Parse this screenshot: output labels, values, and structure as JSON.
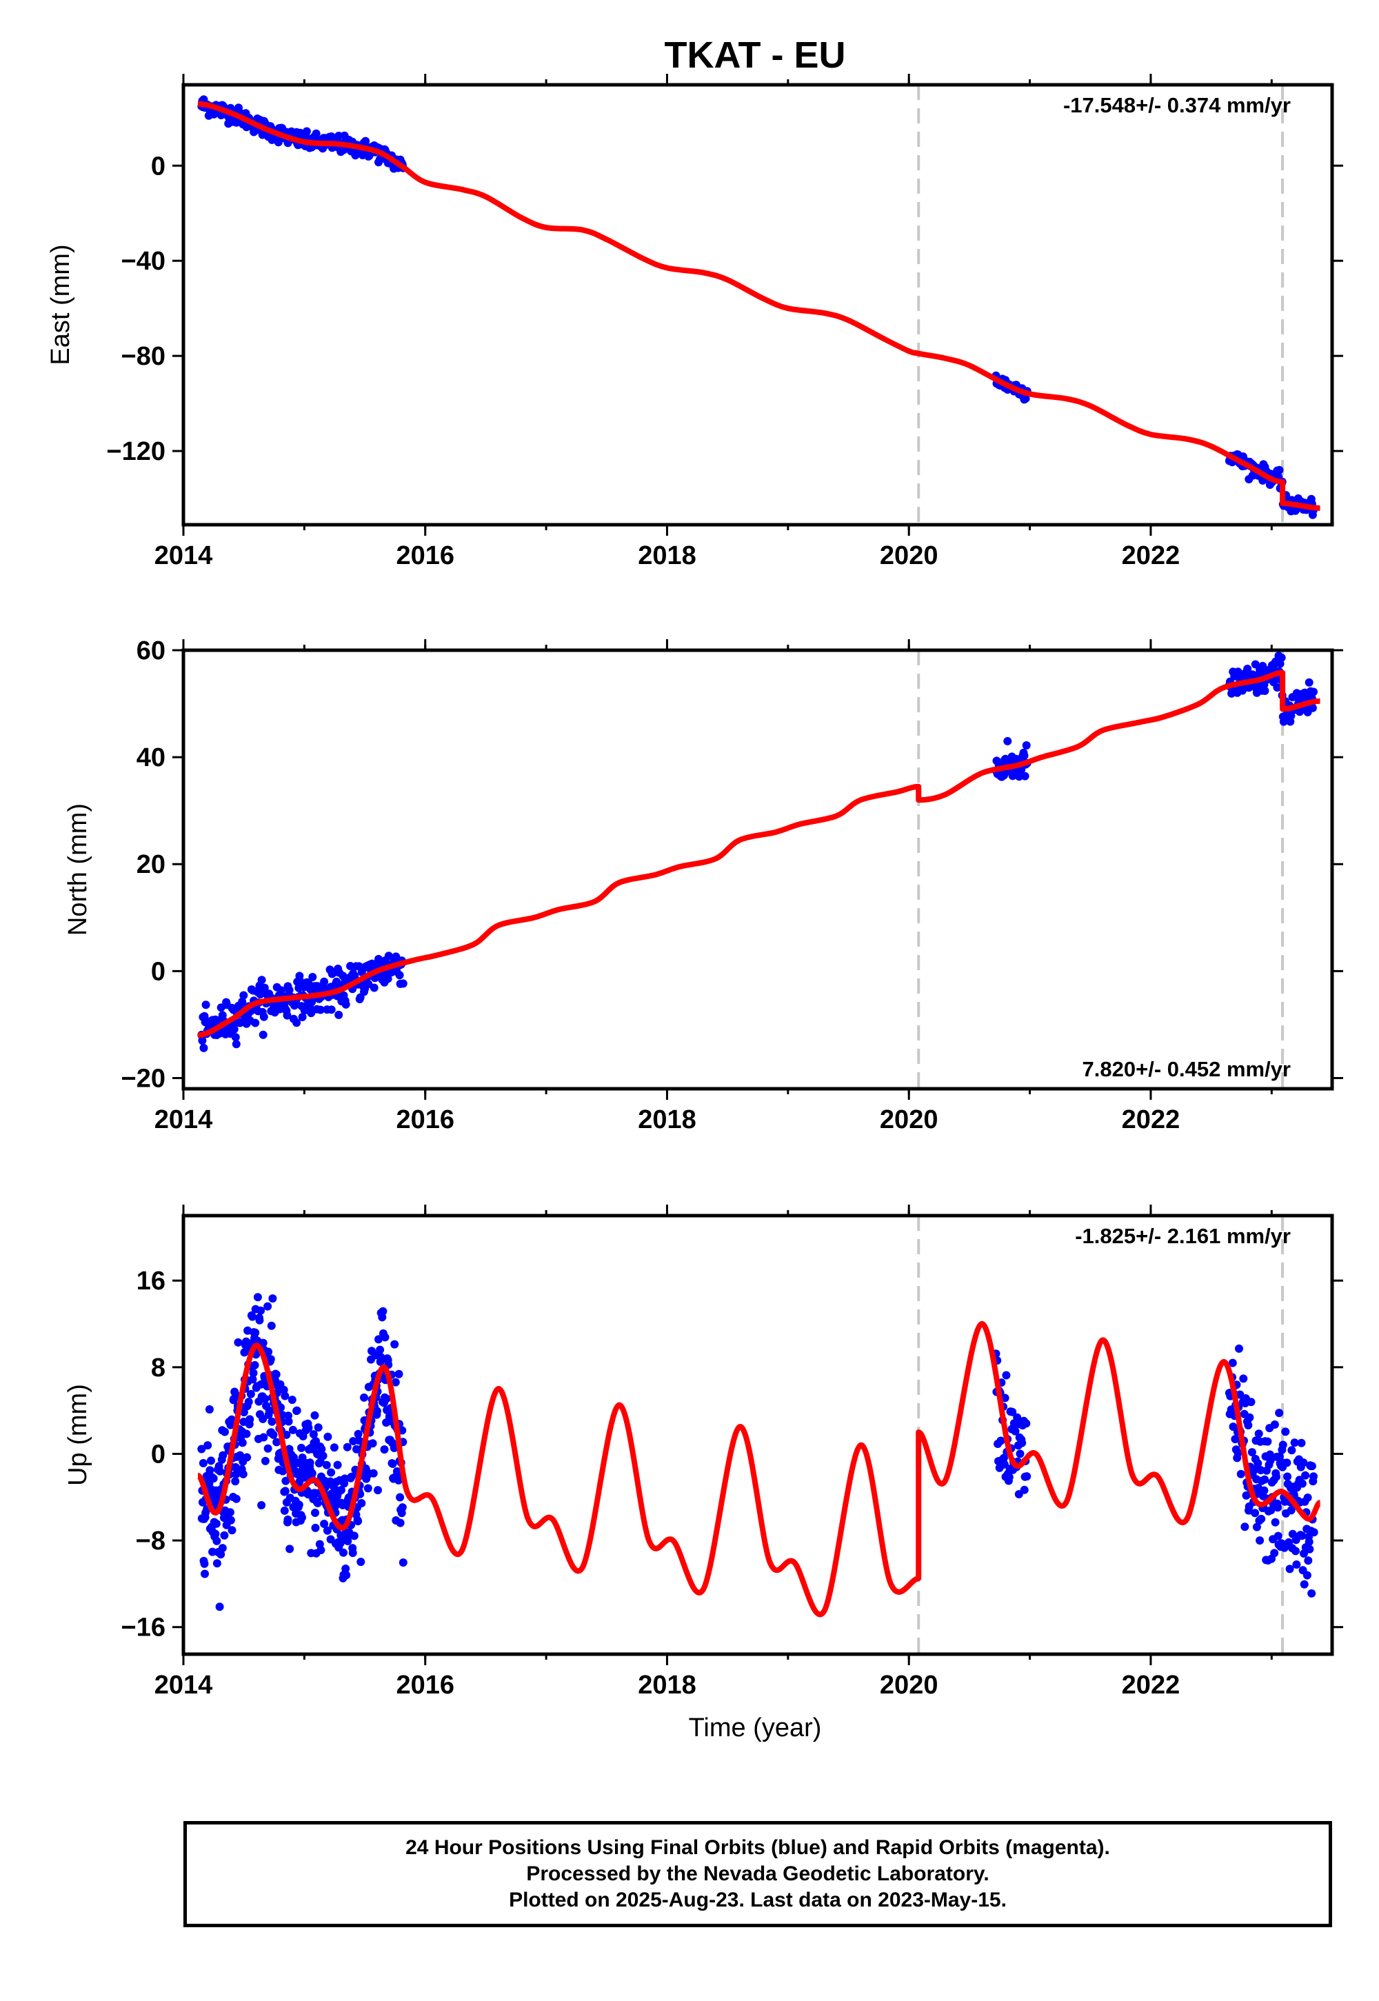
{
  "chart_data": {
    "type": "scatter",
    "title": "TKAT - EU",
    "xlabel": "Time (year)",
    "xlim": [
      2014.0,
      2023.5
    ],
    "x_ticks": [
      2014,
      2016,
      2018,
      2020,
      2022
    ],
    "x_tick_labels": [
      "2014",
      "2016",
      "2018",
      "2020",
      "2022"
    ],
    "breaks": [
      2020.08,
      2023.09
    ],
    "colors": {
      "observations": "#0000ff",
      "model": "#ff0000",
      "breaks": "#c8c8c8"
    },
    "panels": [
      {
        "ylabel": "East (mm)",
        "ylim": [
          -151,
          34
        ],
        "y_ticks": [
          0,
          -40,
          -80,
          -120
        ],
        "y_tick_labels": [
          "0",
          "−40",
          "−80",
          "−120"
        ],
        "rate_label": "-17.548+/- 0.374 mm/yr",
        "rate_position": "top-right",
        "model_line": [
          [
            2014.12,
            26
          ],
          [
            2014.4,
            22
          ],
          [
            2014.7,
            15
          ],
          [
            2015.0,
            10
          ],
          [
            2015.3,
            9
          ],
          [
            2015.6,
            6
          ],
          [
            2015.8,
            0
          ],
          [
            2016.0,
            -7
          ],
          [
            2016.3,
            -10
          ],
          [
            2016.5,
            -13
          ],
          [
            2016.8,
            -22
          ],
          [
            2017.0,
            -26
          ],
          [
            2017.3,
            -27
          ],
          [
            2017.5,
            -31
          ],
          [
            2017.8,
            -39
          ],
          [
            2018.0,
            -43
          ],
          [
            2018.3,
            -45
          ],
          [
            2018.5,
            -48
          ],
          [
            2018.8,
            -56
          ],
          [
            2019.0,
            -60
          ],
          [
            2019.3,
            -62
          ],
          [
            2019.5,
            -65
          ],
          [
            2019.8,
            -73
          ],
          [
            2020.0,
            -78
          ],
          [
            2020.08,
            -79
          ],
          [
            2020.3,
            -81
          ],
          [
            2020.5,
            -84
          ],
          [
            2020.8,
            -92
          ],
          [
            2021.0,
            -96
          ],
          [
            2021.3,
            -98
          ],
          [
            2021.5,
            -101
          ],
          [
            2021.8,
            -109
          ],
          [
            2022.0,
            -113
          ],
          [
            2022.3,
            -115
          ],
          [
            2022.5,
            -118
          ],
          [
            2022.8,
            -126
          ],
          [
            2023.09,
            -133
          ],
          [
            2023.09,
            -142
          ],
          [
            2023.4,
            -144
          ]
        ],
        "obs_segments": [
          {
            "from": 2014.15,
            "to": 2015.82,
            "scatter": 1.8,
            "spacing": 0.006
          },
          {
            "from": 2020.72,
            "to": 2020.98,
            "scatter": 1.5,
            "spacing": 0.006
          },
          {
            "from": 2022.65,
            "to": 2023.35,
            "scatter": 1.6,
            "spacing": 0.006
          }
        ]
      },
      {
        "ylabel": "North (mm)",
        "ylim": [
          -22,
          60
        ],
        "y_ticks": [
          60,
          40,
          20,
          0,
          -20
        ],
        "y_tick_labels": [
          "60",
          "40",
          "20",
          "0",
          "−20"
        ],
        "rate_label": "7.820+/- 0.452 mm/yr",
        "rate_position": "bottom-right",
        "model_line": [
          [
            2014.12,
            -12
          ],
          [
            2014.4,
            -9
          ],
          [
            2014.6,
            -6
          ],
          [
            2014.9,
            -5
          ],
          [
            2015.1,
            -4.5
          ],
          [
            2015.3,
            -3.5
          ],
          [
            2015.6,
            0
          ],
          [
            2015.9,
            2
          ],
          [
            2016.1,
            3
          ],
          [
            2016.4,
            5
          ],
          [
            2016.6,
            8.5
          ],
          [
            2016.9,
            10
          ],
          [
            2017.1,
            11.5
          ],
          [
            2017.4,
            13
          ],
          [
            2017.6,
            16.5
          ],
          [
            2017.9,
            18
          ],
          [
            2018.1,
            19.5
          ],
          [
            2018.4,
            21
          ],
          [
            2018.6,
            24.5
          ],
          [
            2018.9,
            26
          ],
          [
            2019.1,
            27.5
          ],
          [
            2019.4,
            29
          ],
          [
            2019.6,
            32
          ],
          [
            2019.9,
            33.5
          ],
          [
            2020.08,
            34.5
          ],
          [
            2020.08,
            32
          ],
          [
            2020.3,
            33
          ],
          [
            2020.6,
            37
          ],
          [
            2020.9,
            38.5
          ],
          [
            2021.1,
            40
          ],
          [
            2021.4,
            42
          ],
          [
            2021.6,
            45
          ],
          [
            2021.9,
            46.5
          ],
          [
            2022.1,
            47.5
          ],
          [
            2022.4,
            50
          ],
          [
            2022.6,
            53
          ],
          [
            2022.9,
            54.5
          ],
          [
            2023.09,
            55.8
          ],
          [
            2023.09,
            49
          ],
          [
            2023.4,
            50.5
          ]
        ],
        "obs_segments": [
          {
            "from": 2014.15,
            "to": 2015.82,
            "scatter": 1.8,
            "spacing": 0.006
          },
          {
            "from": 2020.72,
            "to": 2020.98,
            "scatter": 1.5,
            "spacing": 0.006
          },
          {
            "from": 2022.65,
            "to": 2023.35,
            "scatter": 1.6,
            "spacing": 0.006
          }
        ]
      },
      {
        "ylabel": "Up (mm)",
        "ylim": [
          -18.5,
          22
        ],
        "y_ticks": [
          16,
          8,
          0,
          -8,
          -16
        ],
        "y_tick_labels": [
          "16",
          "8",
          "0",
          "−8",
          "−16"
        ],
        "rate_label": "-1.825+/- 2.161 mm/yr",
        "rate_position": "top-right",
        "model_line": [
          [
            2014.12,
            -2
          ],
          [
            2014.3,
            -5
          ],
          [
            2014.6,
            10
          ],
          [
            2014.9,
            -2.5
          ],
          [
            2015.1,
            -2.5
          ],
          [
            2015.35,
            -6.5
          ],
          [
            2015.65,
            8
          ],
          [
            2015.85,
            -3.5
          ],
          [
            2016.05,
            -4
          ],
          [
            2016.3,
            -9
          ],
          [
            2016.6,
            6
          ],
          [
            2016.85,
            -6
          ],
          [
            2017.05,
            -6
          ],
          [
            2017.3,
            -10.5
          ],
          [
            2017.6,
            4.5
          ],
          [
            2017.85,
            -8
          ],
          [
            2018.05,
            -8
          ],
          [
            2018.3,
            -12.5
          ],
          [
            2018.6,
            2.5
          ],
          [
            2018.85,
            -10
          ],
          [
            2019.05,
            -10
          ],
          [
            2019.3,
            -14.5
          ],
          [
            2019.6,
            0.8
          ],
          [
            2019.85,
            -12
          ],
          [
            2020.08,
            -11.5
          ],
          [
            2020.08,
            2
          ],
          [
            2020.3,
            -2.5
          ],
          [
            2020.6,
            12
          ],
          [
            2020.85,
            -0.5
          ],
          [
            2021.05,
            0
          ],
          [
            2021.3,
            -4.5
          ],
          [
            2021.6,
            10.5
          ],
          [
            2021.85,
            -2
          ],
          [
            2022.05,
            -2
          ],
          [
            2022.3,
            -6
          ],
          [
            2022.6,
            8.5
          ],
          [
            2022.85,
            -4
          ],
          [
            2023.09,
            -3.5
          ],
          [
            2023.3,
            -6
          ],
          [
            2023.4,
            -4.5
          ]
        ],
        "obs_segments": [
          {
            "from": 2014.15,
            "to": 2015.82,
            "scatter": 3.2,
            "spacing": 0.003
          },
          {
            "from": 2020.72,
            "to": 2020.98,
            "scatter": 3.0,
            "spacing": 0.005
          },
          {
            "from": 2022.65,
            "to": 2023.35,
            "scatter": 3.3,
            "spacing": 0.004
          }
        ]
      }
    ]
  },
  "footer": {
    "line1": "24 Hour Positions Using Final Orbits (blue) and Rapid Orbits (magenta).",
    "line2": "Processed by the Nevada Geodetic Laboratory.",
    "line3": "Plotted on 2025-Aug-23. Last data on 2023-May-15."
  }
}
